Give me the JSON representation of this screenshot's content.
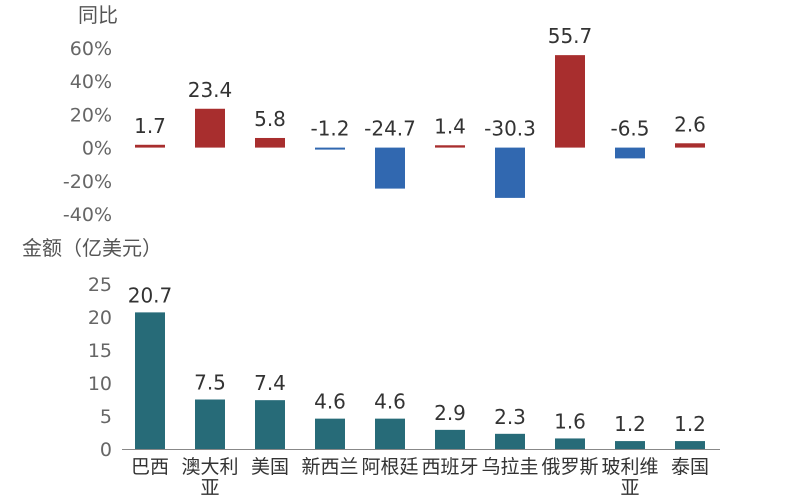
{
  "chart_data": [
    {
      "type": "bar",
      "title": "",
      "ylabel": "同比",
      "xlabel": "",
      "ylim": [
        -40,
        60
      ],
      "y_ticks": [
        "60%",
        "40%",
        "20%",
        "0%",
        "-20%",
        "-40%"
      ],
      "y_tick_values": [
        60,
        40,
        20,
        0,
        -20,
        -40
      ],
      "categories": [
        "巴西",
        "澳大利亚",
        "美国",
        "新西兰",
        "阿根廷",
        "西班牙",
        "乌拉圭",
        "俄罗斯",
        "玻利维亚",
        "泰国"
      ],
      "values": [
        1.7,
        23.4,
        5.8,
        -1.2,
        -24.7,
        1.4,
        -30.3,
        55.7,
        -6.5,
        2.6
      ],
      "data_labels": [
        "1.7",
        "23.4",
        "5.8",
        "-1.2",
        "-24.7",
        "1.4",
        "-30.3",
        "55.7",
        "-6.5",
        "2.6"
      ],
      "colors": {
        "positive": "#a82e2e",
        "negative": "#3168b0"
      }
    },
    {
      "type": "bar",
      "title": "",
      "ylabel": "金额（亿美元）",
      "xlabel": "",
      "ylim": [
        0,
        25
      ],
      "y_ticks": [
        "25",
        "20",
        "15",
        "10",
        "5",
        "0"
      ],
      "y_tick_values": [
        25,
        20,
        15,
        10,
        5,
        0
      ],
      "categories": [
        "巴西",
        "澳大利亚",
        "美国",
        "新西兰",
        "阿根廷",
        "西班牙",
        "乌拉圭",
        "俄罗斯",
        "玻利维亚",
        "泰国"
      ],
      "category_labels": [
        [
          "巴西"
        ],
        [
          "澳大利",
          "亚"
        ],
        [
          "美国"
        ],
        [
          "新西兰"
        ],
        [
          "阿根廷"
        ],
        [
          "西班牙"
        ],
        [
          "乌拉圭"
        ],
        [
          "俄罗斯"
        ],
        [
          "玻利维",
          "亚"
        ],
        [
          "泰国"
        ]
      ],
      "values": [
        20.7,
        7.5,
        7.4,
        4.6,
        4.6,
        2.9,
        2.3,
        1.6,
        1.2,
        1.2
      ],
      "data_labels": [
        "20.7",
        "7.5",
        "7.4",
        "4.6",
        "4.6",
        "2.9",
        "2.3",
        "1.6",
        "1.2",
        "1.2"
      ],
      "colors": {
        "bar": "#276b78",
        "axis": "#888888",
        "text": "#333333",
        "tick": "#666666"
      }
    }
  ]
}
